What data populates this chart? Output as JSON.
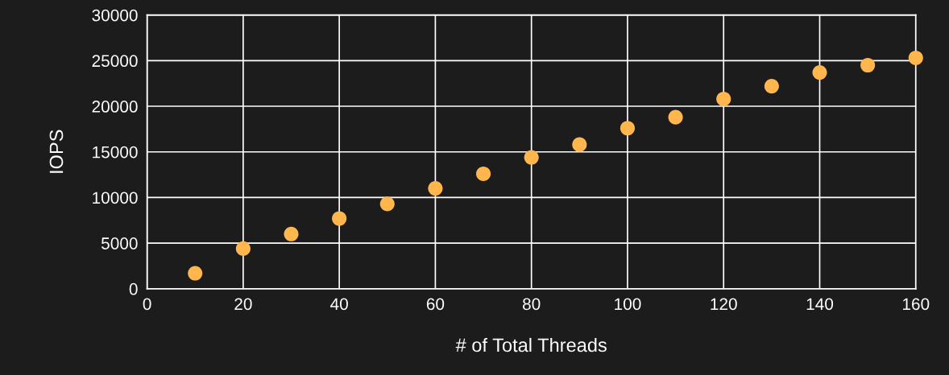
{
  "chart_data": {
    "type": "scatter",
    "xlabel": "# of Total Threads",
    "ylabel": "IOPS",
    "x": [
      10,
      20,
      30,
      40,
      50,
      60,
      70,
      80,
      90,
      100,
      110,
      120,
      130,
      140,
      150,
      160
    ],
    "series": [
      {
        "color": "#ffb74d",
        "values": [
          1700,
          4400,
          6000,
          7700,
          9300,
          11000,
          12600,
          14400,
          15800,
          17600,
          18800,
          20800,
          22200,
          23700,
          24500,
          25300
        ]
      }
    ],
    "xlim": [
      0,
      160
    ],
    "xticks": [
      0,
      20,
      40,
      60,
      80,
      100,
      120,
      140,
      160
    ],
    "ylim": [
      0,
      30000
    ],
    "yticks": [
      0,
      5000,
      10000,
      15000,
      20000,
      25000,
      30000
    ],
    "grid": true,
    "marker": "circle"
  }
}
